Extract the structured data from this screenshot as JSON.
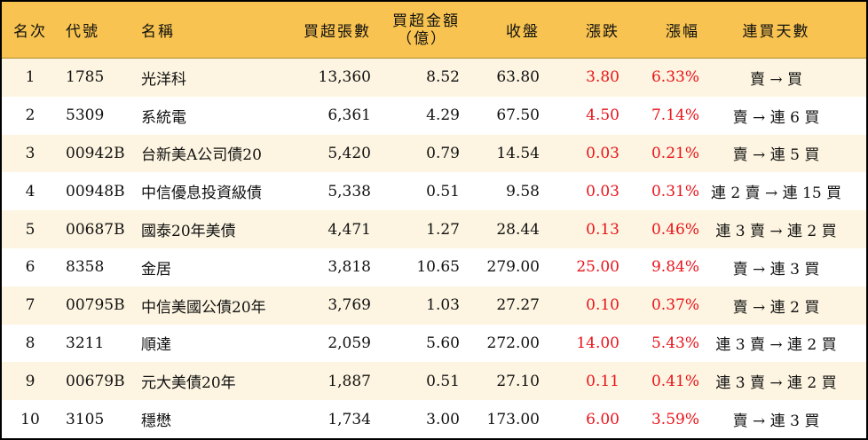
{
  "header": {
    "rank": "名次",
    "code": "代號",
    "name": "名稱",
    "net_buy_lots": "買超張數",
    "net_buy_amount": "買超金額",
    "net_buy_amount_unit": "（億）",
    "close": "收盤",
    "change": "漲跌",
    "change_pct": "漲幅",
    "streak": "連買天數"
  },
  "colors": {
    "header_bg": "#f8c350",
    "stripe_bg": "#fdf5e1",
    "up": "#e8141b"
  },
  "rows": [
    {
      "rank": "1",
      "code": "1785",
      "name": "光洋科",
      "lots": "13,360",
      "amount": "8.52",
      "close": "63.80",
      "change": "3.80",
      "pct": "6.33%",
      "streak": "賣 → 買"
    },
    {
      "rank": "2",
      "code": "5309",
      "name": "系統電",
      "lots": "6,361",
      "amount": "4.29",
      "close": "67.50",
      "change": "4.50",
      "pct": "7.14%",
      "streak": "賣 → 連 6 買"
    },
    {
      "rank": "3",
      "code": "00942B",
      "name": "台新美A公司債20",
      "lots": "5,420",
      "amount": "0.79",
      "close": "14.54",
      "change": "0.03",
      "pct": "0.21%",
      "streak": "賣 → 連 5 買"
    },
    {
      "rank": "4",
      "code": "00948B",
      "name": "中信優息投資級債",
      "lots": "5,338",
      "amount": "0.51",
      "close": "9.58",
      "change": "0.03",
      "pct": "0.31%",
      "streak": "連 2 賣 → 連 15 買"
    },
    {
      "rank": "5",
      "code": "00687B",
      "name": "國泰20年美債",
      "lots": "4,471",
      "amount": "1.27",
      "close": "28.44",
      "change": "0.13",
      "pct": "0.46%",
      "streak": "連 3 賣 → 連 2 買"
    },
    {
      "rank": "6",
      "code": "8358",
      "name": "金居",
      "lots": "3,818",
      "amount": "10.65",
      "close": "279.00",
      "change": "25.00",
      "pct": "9.84%",
      "streak": "賣 → 連 3 買"
    },
    {
      "rank": "7",
      "code": "00795B",
      "name": "中信美國公債20年",
      "lots": "3,769",
      "amount": "1.03",
      "close": "27.27",
      "change": "0.10",
      "pct": "0.37%",
      "streak": "賣 → 連 2 買"
    },
    {
      "rank": "8",
      "code": "3211",
      "name": "順達",
      "lots": "2,059",
      "amount": "5.60",
      "close": "272.00",
      "change": "14.00",
      "pct": "5.43%",
      "streak": "連 3 賣 → 連 2 買"
    },
    {
      "rank": "9",
      "code": "00679B",
      "name": "元大美債20年",
      "lots": "1,887",
      "amount": "0.51",
      "close": "27.10",
      "change": "0.11",
      "pct": "0.41%",
      "streak": "連 3 賣 → 連 2 買"
    },
    {
      "rank": "10",
      "code": "3105",
      "name": "穩懋",
      "lots": "1,734",
      "amount": "3.00",
      "close": "173.00",
      "change": "6.00",
      "pct": "3.59%",
      "streak": "賣 → 連 3 買"
    }
  ]
}
